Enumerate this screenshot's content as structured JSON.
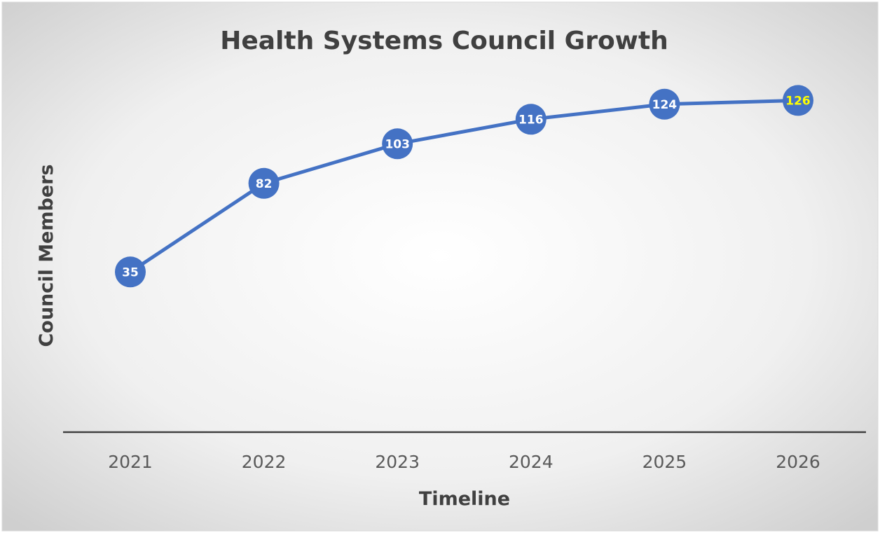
{
  "chart_data": {
    "type": "line",
    "title": "Health Systems Council Growth",
    "xlabel": "Timeline",
    "ylabel": "Council Members",
    "categories": [
      "2021",
      "2022",
      "2023",
      "2024",
      "2025",
      "2026"
    ],
    "series": [
      {
        "values": [
          35,
          82,
          103,
          116,
          124,
          126
        ],
        "labels": [
          "35",
          "82",
          "103",
          "116",
          "124",
          "126"
        ]
      }
    ],
    "ylim": [
      -50,
      170
    ],
    "grid": false,
    "legend": "none",
    "line_color": "#4472C4",
    "marker_color": "#4472C4",
    "label_color": "#FFFFFF",
    "highlight_label_color": "#FFFF00",
    "highlight_index": 5
  }
}
